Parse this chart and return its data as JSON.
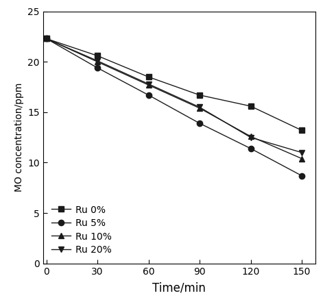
{
  "x": [
    0,
    30,
    60,
    90,
    120,
    150
  ],
  "series": [
    {
      "label": "Ru 0%",
      "y": [
        22.3,
        20.6,
        18.5,
        16.7,
        15.6,
        13.2
      ],
      "marker": "s",
      "color": "#1a1a1a"
    },
    {
      "label": "Ru 5%",
      "y": [
        22.3,
        19.4,
        16.7,
        13.9,
        11.4,
        8.7
      ],
      "marker": "o",
      "color": "#1a1a1a"
    },
    {
      "label": "Ru 10%",
      "y": [
        22.3,
        20.0,
        17.7,
        15.4,
        12.6,
        10.4
      ],
      "marker": "^",
      "color": "#1a1a1a"
    },
    {
      "label": "Ru 20%",
      "y": [
        22.3,
        20.1,
        17.8,
        15.5,
        12.5,
        11.0
      ],
      "marker": "v",
      "color": "#1a1a1a"
    }
  ],
  "xlabel": "Time/min",
  "ylabel": "MO concentration/ppm",
  "xlim": [
    -2,
    158
  ],
  "ylim": [
    0,
    25
  ],
  "xticks": [
    0,
    30,
    60,
    90,
    120,
    150
  ],
  "yticks": [
    0,
    5,
    10,
    15,
    20,
    25
  ],
  "legend_loc": "lower left",
  "background_color": "#ffffff",
  "linewidth": 1.0,
  "markersize": 6
}
